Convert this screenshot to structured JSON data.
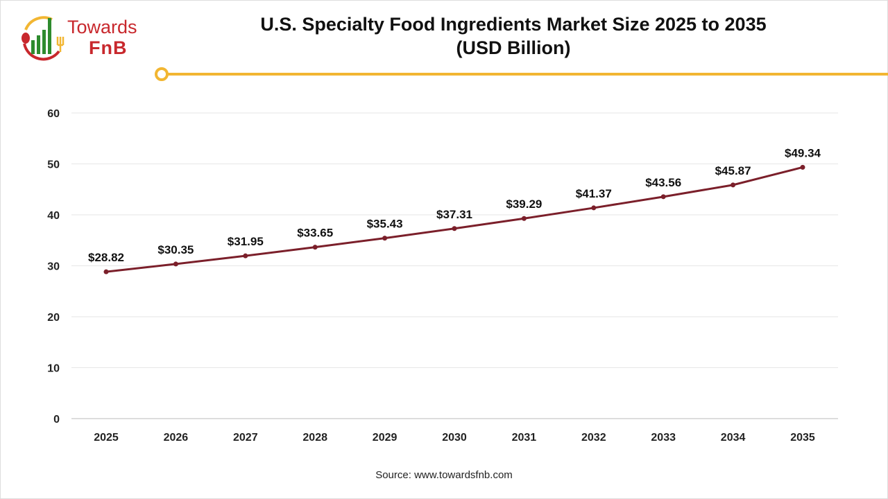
{
  "brand": {
    "name_line1": "Towards",
    "name_line2": "FnB",
    "colors": {
      "red": "#c8282d",
      "green": "#2e8b2e",
      "gold": "#f2b632"
    }
  },
  "source": "Source: www.towardsfnb.com",
  "chart_data": {
    "type": "line",
    "title": "U.S. Specialty Food Ingredients Market Size 2025 to 2035",
    "subtitle": "(USD Billion)",
    "categories": [
      "2025",
      "2026",
      "2027",
      "2028",
      "2029",
      "2030",
      "2031",
      "2032",
      "2033",
      "2034",
      "2035"
    ],
    "values": [
      28.82,
      30.35,
      31.95,
      33.65,
      35.43,
      37.31,
      39.29,
      41.37,
      43.56,
      45.87,
      49.34
    ],
    "data_labels": [
      "$28.82",
      "$30.35",
      "$31.95",
      "$33.65",
      "$35.43",
      "$37.31",
      "$39.29",
      "$41.37",
      "$43.56",
      "$45.87",
      "$49.34"
    ],
    "yticks": [
      0,
      10,
      20,
      30,
      40,
      50,
      60
    ],
    "ylim": [
      0,
      60
    ],
    "grid": true,
    "line_color": "#7b1f2a",
    "xlabel": "",
    "ylabel": ""
  }
}
